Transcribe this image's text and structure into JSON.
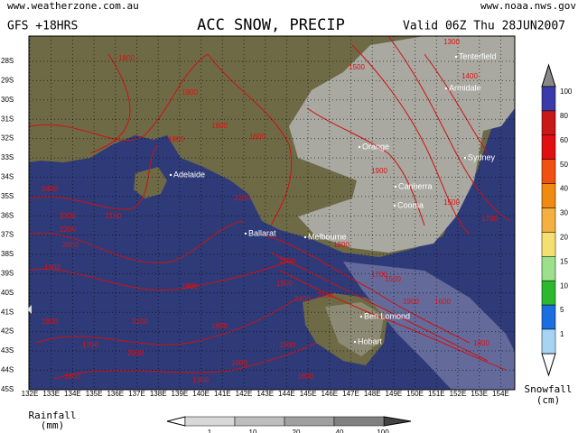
{
  "header": {
    "site": "www.weatherzone.com.au",
    "model": "GFS +18HRS",
    "title": "ACC SNOW, PRECIP",
    "valid": "Valid 06Z Thu 28JUN2007",
    "source": "www.noaa.nws.gov"
  },
  "map": {
    "lat_labels": [
      "28S",
      "29S",
      "30S",
      "31S",
      "32S",
      "33S",
      "34S",
      "35S",
      "36S",
      "37S",
      "38S",
      "39S",
      "40S",
      "41S",
      "42S",
      "43S",
      "44S",
      "45S"
    ],
    "lon_labels": [
      "132E",
      "133E",
      "134E",
      "135E",
      "136E",
      "137E",
      "138E",
      "139E",
      "140E",
      "141E",
      "142E",
      "143E",
      "144E",
      "145E",
      "146E",
      "147E",
      "148E",
      "149E",
      "150E",
      "151E",
      "152E",
      "153E",
      "154E"
    ],
    "cities": [
      "Tenterfield",
      "Armidale",
      "Orange",
      "Sydney",
      "Adelaide",
      "Canberra",
      "Cooma",
      "Ballarat",
      "Melbourne",
      "Ben Lomond",
      "Hobart"
    ],
    "contour_labels": [
      "1800",
      "1300",
      "1500",
      "1900",
      "1800",
      "1600",
      "1800",
      "1400",
      "2100",
      "1900",
      "2400",
      "2300",
      "2200",
      "2000",
      "2100",
      "1900",
      "2000",
      "1800",
      "1900",
      "1900",
      "1700",
      "2000",
      "1800",
      "2100",
      "1800",
      "1900",
      "1900",
      "1800",
      "2400",
      "2100",
      "1700",
      "1800",
      "1500",
      "1900",
      "1600",
      "1500",
      "1700",
      "1800",
      "1300"
    ]
  },
  "snowfall_scale": {
    "label": "Snowfall\n(cm)",
    "ticks": [
      "100",
      "80",
      "60",
      "50",
      "40",
      "30",
      "20",
      "15",
      "10",
      "5",
      "1"
    ]
  },
  "rainfall_scale": {
    "label": "Rainfall\n(mm)",
    "ticks": [
      "1",
      "10",
      "20",
      "40",
      "100"
    ]
  }
}
